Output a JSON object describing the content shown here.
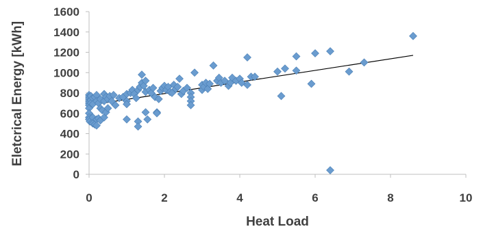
{
  "chart_data": {
    "type": "scatter",
    "title": "",
    "xlabel": "Heat Load",
    "ylabel": "Eletcrical Energy [kWh]",
    "xlim": [
      0,
      10
    ],
    "ylim": [
      0,
      1600
    ],
    "xticks": [
      0,
      2,
      4,
      6,
      8,
      10
    ],
    "yticks": [
      0,
      200,
      400,
      600,
      800,
      1000,
      1200,
      1400,
      1600
    ],
    "grid": false,
    "legend": "none",
    "marker": "diamond",
    "point_color": "#6a9ccf",
    "trendline": {
      "type": "linear",
      "x": [
        0,
        8.6
      ],
      "y": [
        680,
        1170
      ],
      "color": "#000000"
    },
    "series": [
      {
        "points": [
          [
            0.0,
            780
          ],
          [
            0.0,
            760
          ],
          [
            0.0,
            740
          ],
          [
            0.0,
            720
          ],
          [
            0.0,
            700
          ],
          [
            0.0,
            680
          ],
          [
            0.0,
            650
          ],
          [
            0.0,
            600
          ],
          [
            0.0,
            560
          ],
          [
            0.0,
            540
          ],
          [
            0.02,
            520
          ],
          [
            0.05,
            770
          ],
          [
            0.05,
            730
          ],
          [
            0.05,
            700
          ],
          [
            0.08,
            510
          ],
          [
            0.1,
            750
          ],
          [
            0.1,
            690
          ],
          [
            0.1,
            560
          ],
          [
            0.1,
            500
          ],
          [
            0.15,
            760
          ],
          [
            0.15,
            490
          ],
          [
            0.2,
            780
          ],
          [
            0.2,
            720
          ],
          [
            0.2,
            540
          ],
          [
            0.2,
            480
          ],
          [
            0.25,
            700
          ],
          [
            0.25,
            550
          ],
          [
            0.3,
            740
          ],
          [
            0.3,
            650
          ],
          [
            0.3,
            530
          ],
          [
            0.35,
            630
          ],
          [
            0.4,
            790
          ],
          [
            0.4,
            720
          ],
          [
            0.4,
            560
          ],
          [
            0.45,
            760
          ],
          [
            0.45,
            610
          ],
          [
            0.5,
            740
          ],
          [
            0.5,
            650
          ],
          [
            0.55,
            770
          ],
          [
            0.6,
            720
          ],
          [
            0.65,
            780
          ],
          [
            0.7,
            680
          ],
          [
            0.8,
            750
          ],
          [
            0.9,
            760
          ],
          [
            1.0,
            790
          ],
          [
            1.0,
            720
          ],
          [
            1.0,
            690
          ],
          [
            1.0,
            540
          ],
          [
            1.1,
            800
          ],
          [
            1.15,
            830
          ],
          [
            1.2,
            790
          ],
          [
            1.25,
            750
          ],
          [
            1.3,
            830
          ],
          [
            1.3,
            520
          ],
          [
            1.3,
            470
          ],
          [
            1.35,
            860
          ],
          [
            1.4,
            980
          ],
          [
            1.4,
            900
          ],
          [
            1.45,
            870
          ],
          [
            1.5,
            920
          ],
          [
            1.5,
            810
          ],
          [
            1.5,
            610
          ],
          [
            1.55,
            540
          ],
          [
            1.6,
            830
          ],
          [
            1.65,
            800
          ],
          [
            1.7,
            850
          ],
          [
            1.75,
            760
          ],
          [
            1.8,
            610
          ],
          [
            1.8,
            600
          ],
          [
            1.85,
            740
          ],
          [
            1.9,
            820
          ],
          [
            1.95,
            850
          ],
          [
            2.0,
            870
          ],
          [
            2.05,
            830
          ],
          [
            2.1,
            860
          ],
          [
            2.15,
            810
          ],
          [
            2.2,
            800
          ],
          [
            2.25,
            880
          ],
          [
            2.3,
            840
          ],
          [
            2.35,
            860
          ],
          [
            2.4,
            940
          ],
          [
            2.45,
            790
          ],
          [
            2.5,
            820
          ],
          [
            2.6,
            850
          ],
          [
            2.7,
            800
          ],
          [
            2.7,
            760
          ],
          [
            2.7,
            720
          ],
          [
            2.7,
            680
          ],
          [
            2.8,
            1000
          ],
          [
            3.0,
            880
          ],
          [
            3.0,
            830
          ],
          [
            3.05,
            860
          ],
          [
            3.1,
            900
          ],
          [
            3.15,
            840
          ],
          [
            3.2,
            890
          ],
          [
            3.3,
            1070
          ],
          [
            3.4,
            920
          ],
          [
            3.45,
            950
          ],
          [
            3.5,
            900
          ],
          [
            3.6,
            920
          ],
          [
            3.7,
            870
          ],
          [
            3.75,
            900
          ],
          [
            3.8,
            950
          ],
          [
            3.9,
            920
          ],
          [
            4.0,
            940
          ],
          [
            4.05,
            900
          ],
          [
            4.2,
            1150
          ],
          [
            4.2,
            880
          ],
          [
            4.3,
            960
          ],
          [
            4.4,
            960
          ],
          [
            5.0,
            1010
          ],
          [
            5.1,
            770
          ],
          [
            5.2,
            1040
          ],
          [
            5.5,
            1160
          ],
          [
            5.5,
            1020
          ],
          [
            5.9,
            890
          ],
          [
            6.0,
            1190
          ],
          [
            6.4,
            1210
          ],
          [
            6.4,
            40
          ],
          [
            6.9,
            1010
          ],
          [
            7.3,
            1100
          ],
          [
            8.6,
            1360
          ]
        ]
      }
    ]
  }
}
